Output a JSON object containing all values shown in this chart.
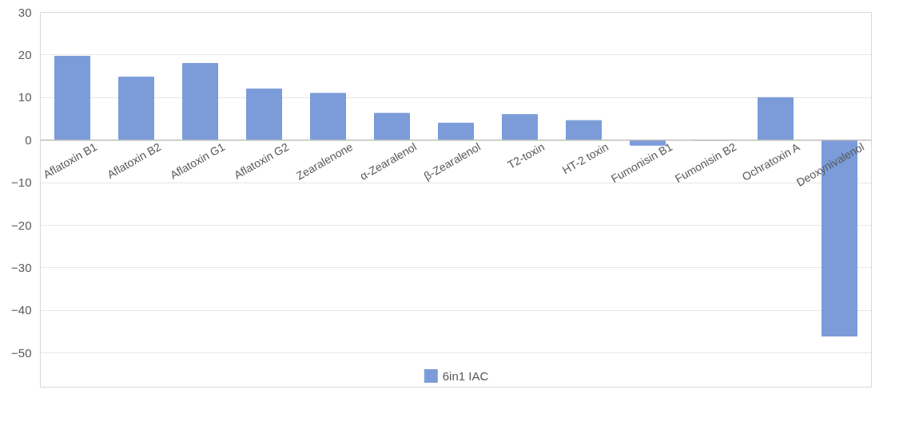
{
  "chart_data": {
    "type": "bar",
    "categories": [
      "Aflatoxin B1",
      "Aflatoxin B2",
      "Aflatoxin G1",
      "Aflatoxin G2",
      "Zearalenone",
      "α-Zearalenol",
      "β-Zearalenol",
      "T2-toxin",
      "HT-2 toxin",
      "Fumonisin B1",
      "Fumonisin B2",
      "Ochratoxin A",
      "Deoxynivalenol"
    ],
    "series": [
      {
        "name": "6in1 IAC",
        "color": "#7b9cd9",
        "values": [
          19.7,
          14.8,
          18,
          12,
          11,
          6.3,
          4,
          6,
          4.6,
          -1.2,
          0,
          10,
          -46
        ]
      }
    ],
    "ylim": [
      -58,
      30
    ],
    "yticks": [
      -50,
      -40,
      -30,
      -20,
      -10,
      0,
      10,
      20,
      30
    ],
    "grid": "y",
    "legend": "bottom"
  }
}
